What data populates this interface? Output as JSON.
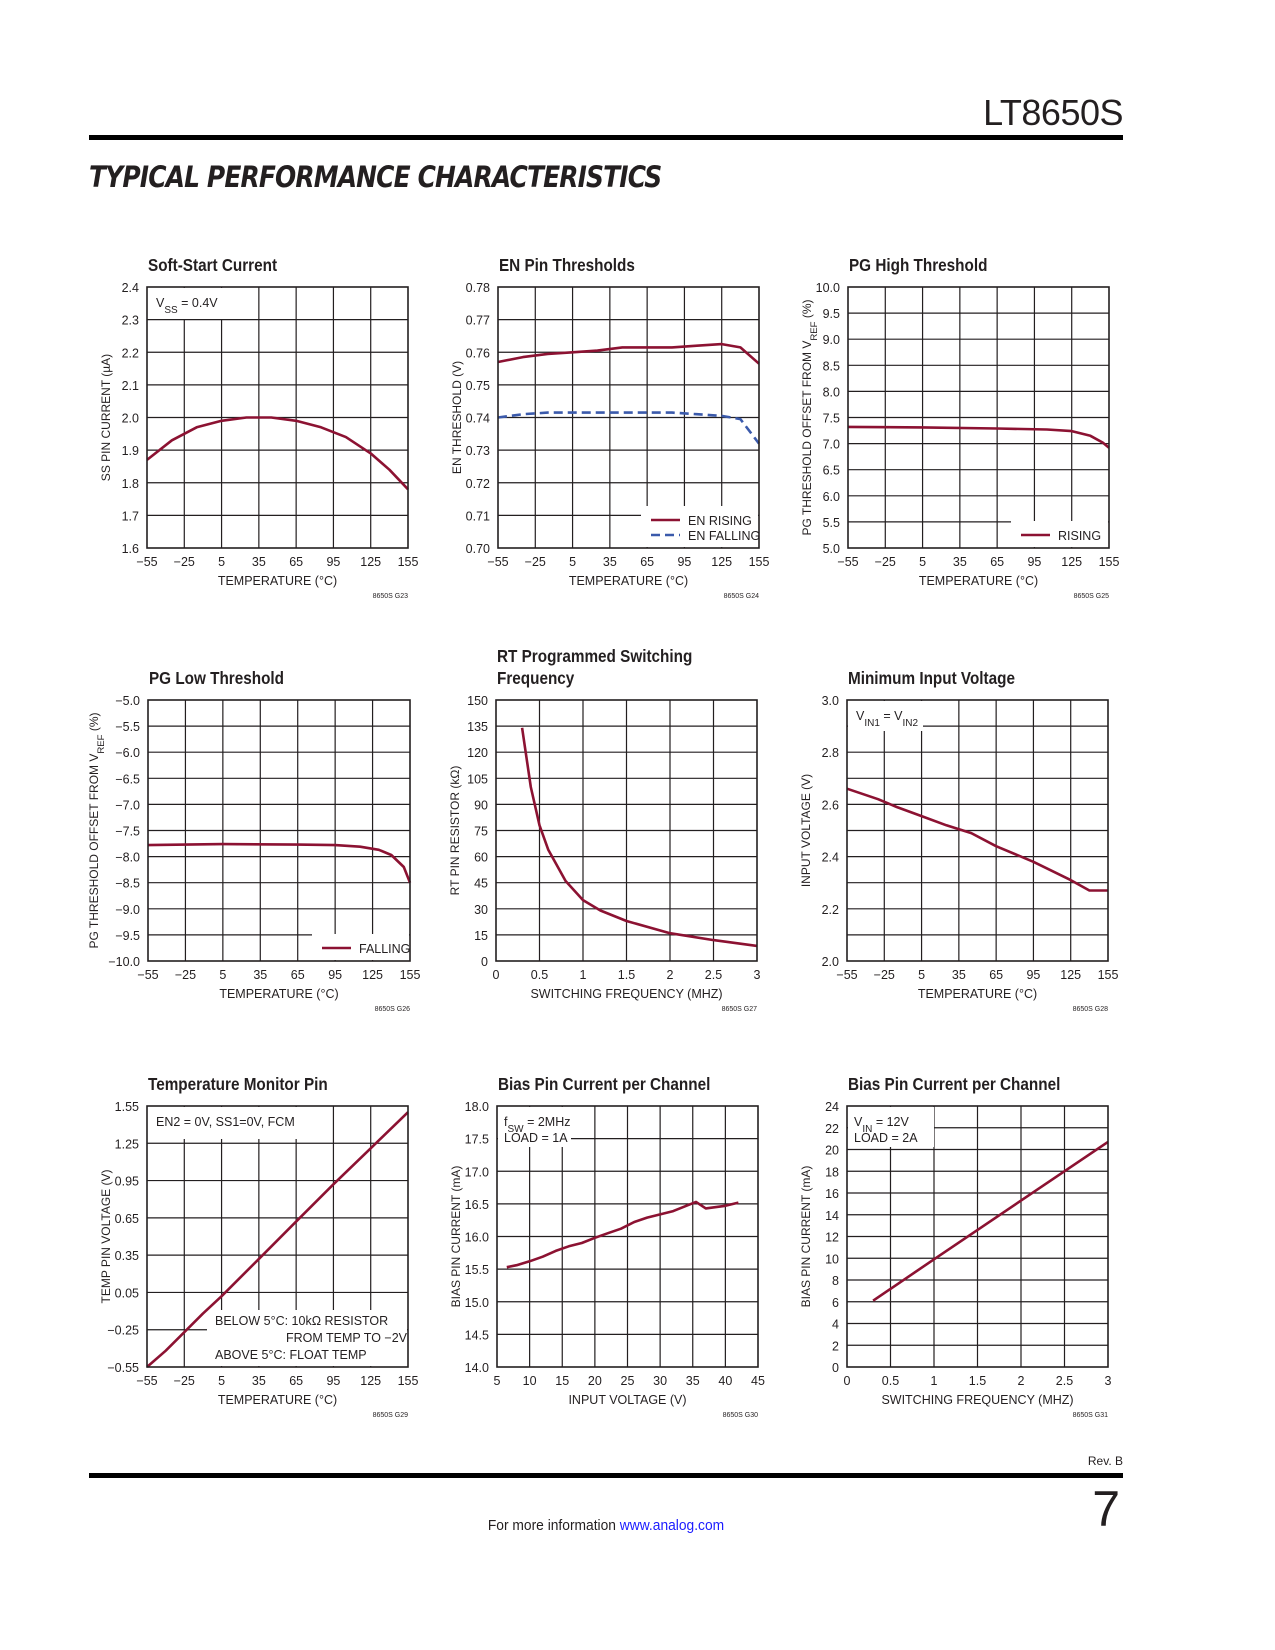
{
  "header": {
    "part_number": "LT8650S",
    "section_title": "TYPICAL PERFORMANCE CHARACTERISTICS"
  },
  "footer": {
    "revision": "Rev. B",
    "page_number": "7",
    "more_info": "For more information",
    "link": "www.analog.com"
  },
  "colors": {
    "red": "#8c1232",
    "blue": "#3b5aab",
    "grid": "#231f20"
  },
  "chart_data": [
    {
      "type": "line",
      "title": [
        "Soft-Start Current"
      ],
      "xlabel": "TEMPERATURE (°C)",
      "ylabel": [
        "SS PIN CURRENT  (µA)"
      ],
      "xlim": [
        -55,
        155
      ],
      "ylim": [
        1.6,
        2.4
      ],
      "xticks": [
        "−55",
        "−25",
        "5",
        "35",
        "65",
        "95",
        "125",
        "155"
      ],
      "yticks": [
        "1.6",
        "1.7",
        "1.8",
        "1.9",
        "2.0",
        "2.1",
        "2.2",
        "2.3",
        "2.4"
      ],
      "xdiv": 7,
      "ydiv": 8,
      "annotation": [
        [
          "V",
          [
            "SS"
          ],
          " = 0.4V"
        ]
      ],
      "figure_id": "8650S G23",
      "series": [
        {
          "name": "",
          "color": "red",
          "dash": false,
          "x": [
            -55,
            -35,
            -15,
            5,
            25,
            45,
            65,
            85,
            105,
            125,
            140,
            155
          ],
          "y": [
            1.87,
            1.93,
            1.97,
            1.99,
            2.0,
            2.0,
            1.99,
            1.97,
            1.94,
            1.89,
            1.84,
            1.78
          ]
        }
      ]
    },
    {
      "type": "line",
      "title": [
        "EN Pin Thresholds"
      ],
      "xlabel": "TEMPERATURE (°C)",
      "ylabel": [
        "EN THRESHOLD (V)"
      ],
      "xlim": [
        -55,
        155
      ],
      "ylim": [
        0.7,
        0.78
      ],
      "xticks": [
        "−55",
        "−25",
        "5",
        "35",
        "65",
        "95",
        "125",
        "155"
      ],
      "yticks": [
        "0.70",
        "0.71",
        "0.72",
        "0.73",
        "0.74",
        "0.75",
        "0.76",
        "0.77",
        "0.78"
      ],
      "xdiv": 7,
      "ydiv": 8,
      "legend": [
        "EN RISING",
        "EN FALLING"
      ],
      "legend_position": "bottom-right",
      "figure_id": "8650S G24",
      "series": [
        {
          "name": "EN RISING",
          "color": "red",
          "dash": false,
          "x": [
            -55,
            -35,
            -15,
            5,
            25,
            45,
            65,
            85,
            105,
            125,
            140,
            155
          ],
          "y": [
            0.757,
            0.7585,
            0.7595,
            0.76,
            0.7605,
            0.7615,
            0.7615,
            0.7615,
            0.762,
            0.7625,
            0.7615,
            0.7565
          ]
        },
        {
          "name": "EN FALLING",
          "color": "blue",
          "dash": true,
          "x": [
            -55,
            -35,
            -15,
            5,
            25,
            45,
            65,
            85,
            105,
            125,
            140,
            155
          ],
          "y": [
            0.74,
            0.741,
            0.7415,
            0.7415,
            0.7415,
            0.7415,
            0.7415,
            0.7415,
            0.741,
            0.7405,
            0.7395,
            0.732
          ]
        }
      ]
    },
    {
      "type": "line",
      "title": [
        "PG High Threshold"
      ],
      "xlabel": "TEMPERATURE (°C)",
      "ylabel": [
        "PG THRESHOLD OFFSET FROM  V",
        [
          "REF"
        ],
        " (%)"
      ],
      "xlim": [
        -55,
        155
      ],
      "ylim": [
        5,
        10
      ],
      "xticks": [
        "−55",
        "−25",
        "5",
        "35",
        "65",
        "95",
        "125",
        "155"
      ],
      "yticks": [
        "5.0",
        "5.5",
        "6.0",
        "6.5",
        "7.0",
        "7.5",
        "8.0",
        "8.5",
        "9.0",
        "9.5",
        "10.0"
      ],
      "xdiv": 7,
      "ydiv": 10,
      "legend": [
        "RISING"
      ],
      "legend_position": "bottom-right",
      "figure_id": "8650S G25",
      "series": [
        {
          "name": "RISING",
          "color": "red",
          "dash": false,
          "x": [
            -55,
            5,
            65,
            105,
            125,
            140,
            150,
            155
          ],
          "y": [
            7.32,
            7.31,
            7.29,
            7.27,
            7.24,
            7.15,
            7.02,
            6.92
          ]
        }
      ]
    },
    {
      "type": "line",
      "title": [
        "PG Low Threshold"
      ],
      "xlabel": "TEMPERATURE (°C)",
      "ylabel": [
        "PG THRESHOLD OFFSET FROM  V",
        [
          "REF"
        ],
        " (%)"
      ],
      "xlim": [
        -55,
        155
      ],
      "ylim": [
        -10,
        -5
      ],
      "xticks": [
        "−55",
        "−25",
        "5",
        "35",
        "65",
        "95",
        "125",
        "155"
      ],
      "yticks": [
        "−10.0",
        "−9.5",
        "−9.0",
        "−8.5",
        "−8.0",
        "−7.5",
        "−7.0",
        "−6.5",
        "−6.0",
        "−5.5",
        "−5.0"
      ],
      "xdiv": 7,
      "ydiv": 10,
      "legend": [
        "FALLING"
      ],
      "legend_position": "bottom-right",
      "figure_id": "8650S G26",
      "series": [
        {
          "name": "FALLING",
          "color": "red",
          "dash": false,
          "x": [
            -55,
            5,
            65,
            95,
            115,
            130,
            140,
            150,
            155
          ],
          "y": [
            -7.78,
            -7.76,
            -7.77,
            -7.78,
            -7.81,
            -7.87,
            -7.97,
            -8.2,
            -8.5
          ]
        }
      ]
    },
    {
      "type": "line",
      "title": [
        "RT Programmed Switching",
        "Frequency"
      ],
      "xlabel": "SWITCHING FREQUENCY (MHZ)",
      "ylabel": [
        "RT PIN RESISTOR (kΩ)"
      ],
      "xlim": [
        0,
        3
      ],
      "ylim": [
        0,
        150
      ],
      "xticks": [
        "0",
        "0.5",
        "1",
        "1.5",
        "2",
        "2.5",
        "3"
      ],
      "yticks": [
        "0",
        "15",
        "30",
        "45",
        "60",
        "75",
        "90",
        "105",
        "120",
        "135",
        "150"
      ],
      "xdiv": 6,
      "ydiv": 10,
      "figure_id": "8650S G27",
      "series": [
        {
          "name": "",
          "color": "red",
          "dash": false,
          "x": [
            0.3,
            0.4,
            0.5,
            0.6,
            0.8,
            1.0,
            1.2,
            1.5,
            2.0,
            2.5,
            3.0
          ],
          "y": [
            134,
            100,
            78,
            64,
            46,
            35,
            29,
            23,
            16,
            12,
            8.7
          ]
        }
      ]
    },
    {
      "type": "line",
      "title": [
        "Minimum Input Voltage"
      ],
      "xlabel": "TEMPERATURE (°C)",
      "ylabel": [
        "INPUT VOLTAGE (V)"
      ],
      "xlim": [
        -55,
        155
      ],
      "ylim": [
        2.0,
        3.0
      ],
      "xticks": [
        "−55",
        "−25",
        "5",
        "35",
        "65",
        "95",
        "125",
        "155"
      ],
      "yticks": [
        "2.0",
        "",
        "2.2",
        "",
        "2.4",
        "",
        "2.6",
        "",
        "2.8",
        "",
        "3.0"
      ],
      "xdiv": 7,
      "ydiv": 10,
      "annotation": [
        [
          "V",
          [
            "IN1"
          ],
          " = V",
          [
            "IN2"
          ]
        ]
      ],
      "figure_id": "8650S G28",
      "series": [
        {
          "name": "",
          "color": "red",
          "dash": false,
          "x": [
            -55,
            -30,
            -15,
            5,
            25,
            45,
            65,
            95,
            125,
            140,
            155
          ],
          "y": [
            2.66,
            2.62,
            2.59,
            2.555,
            2.52,
            2.49,
            2.44,
            2.38,
            2.31,
            2.27,
            2.27
          ]
        }
      ]
    },
    {
      "type": "line",
      "title": [
        "Temperature Monitor Pin"
      ],
      "xlabel": "TEMPERATURE (°C)",
      "ylabel": [
        "TEMP PIN VOLTAGE (V)"
      ],
      "xlim": [
        -55,
        155
      ],
      "ylim": [
        -0.55,
        1.55
      ],
      "xticks": [
        "−55",
        "−25",
        "5",
        "35",
        "65",
        "95",
        "125",
        "155"
      ],
      "yticks": [
        "−0.55",
        "−0.25",
        "0.05",
        "0.35",
        "0.65",
        "0.95",
        "1.25",
        "1.55"
      ],
      "xdiv": 7,
      "ydiv": 7,
      "annotation": [
        [
          "EN2 = 0V, SS1=0V, FCM"
        ]
      ],
      "note": [
        [
          "BELOW 5°C: 10kΩ RESISTOR"
        ],
        [
          "FROM TEMP TO −2V"
        ],
        [
          "ABOVE 5°C:  FLOAT TEMP"
        ]
      ],
      "figure_id": "8650S G29",
      "series": [
        {
          "name": "",
          "color": "red",
          "dash": false,
          "x": [
            -55,
            -40,
            -25,
            -10,
            5,
            35,
            65,
            95,
            125,
            155
          ],
          "y": [
            -0.55,
            -0.42,
            -0.27,
            -0.12,
            0.02,
            0.32,
            0.62,
            0.92,
            1.21,
            1.5
          ]
        }
      ]
    },
    {
      "type": "line",
      "title": [
        "Bias Pin Current per Channel"
      ],
      "xlabel": "INPUT VOLTAGE (V)",
      "ylabel": [
        "BIAS PIN CURRENT  (mA)"
      ],
      "xlim": [
        5,
        45
      ],
      "ylim": [
        14,
        18
      ],
      "xticks": [
        "5",
        "10",
        "15",
        "20",
        "25",
        "30",
        "35",
        "40",
        "45"
      ],
      "yticks": [
        "14.0",
        "14.5",
        "15.0",
        "15.5",
        "16.0",
        "16.5",
        "17.0",
        "17.5",
        "18.0"
      ],
      "xdiv": 8,
      "ydiv": 8,
      "annotation": [
        [
          "f",
          [
            "SW"
          ],
          " = 2MHz"
        ],
        [
          "LOAD = 1A"
        ]
      ],
      "figure_id": "8650S G30",
      "series": [
        {
          "name": "",
          "color": "red",
          "dash": false,
          "x": [
            6.5,
            8,
            10,
            12,
            14,
            16,
            18,
            20,
            22,
            24,
            26,
            28,
            32,
            35.5,
            37,
            40,
            42
          ],
          "y": [
            15.53,
            15.56,
            15.62,
            15.69,
            15.78,
            15.85,
            15.9,
            15.98,
            16.05,
            16.12,
            16.22,
            16.29,
            16.39,
            16.53,
            16.43,
            16.47,
            16.52
          ]
        }
      ]
    },
    {
      "type": "line",
      "title": [
        "Bias Pin Current per Channel"
      ],
      "xlabel": "SWITCHING FREQUENCY (MHZ)",
      "ylabel": [
        "BIAS PIN CURRENT  (mA)"
      ],
      "xlim": [
        0,
        3
      ],
      "ylim": [
        0,
        24
      ],
      "xticks": [
        "0",
        "0.5",
        "1",
        "1.5",
        "2",
        "2.5",
        "3"
      ],
      "yticks": [
        "0",
        "2",
        "4",
        "6",
        "8",
        "10",
        "12",
        "14",
        "16",
        "18",
        "20",
        "22",
        "24"
      ],
      "xdiv": 6,
      "ydiv": 12,
      "annotation": [
        [
          "V",
          [
            "IN"
          ],
          " = 12V"
        ],
        [
          "LOAD = 2A"
        ]
      ],
      "figure_id": "8650S G31",
      "series": [
        {
          "name": "",
          "color": "red",
          "dash": false,
          "x": [
            0.3,
            1.0,
            2.0,
            3.0
          ],
          "y": [
            6.1,
            9.9,
            15.3,
            20.7
          ]
        }
      ]
    }
  ]
}
